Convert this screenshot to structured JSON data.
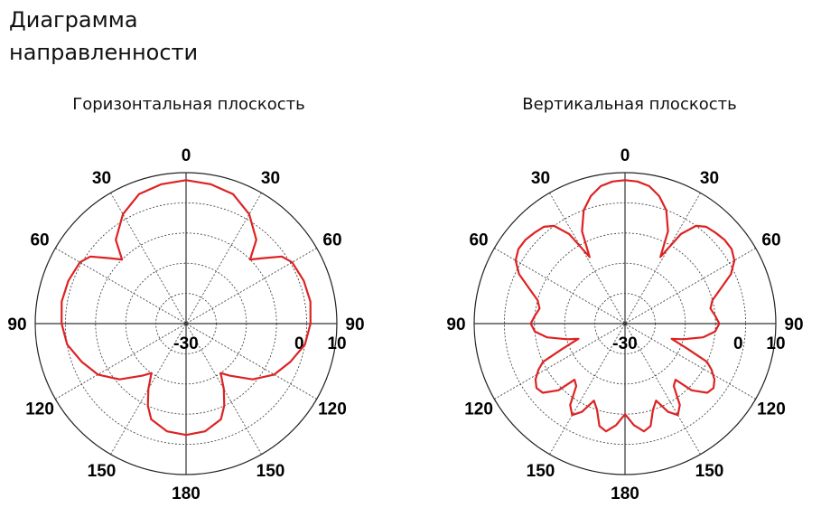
{
  "title": "Диаграмма направленности",
  "chart_data": [
    {
      "type": "polar",
      "title": "Горизонтальная плоскость",
      "angle_labels": [
        "0",
        "30",
        "60",
        "90",
        "120",
        "150",
        "180",
        "150",
        "120",
        "90",
        "60",
        "30"
      ],
      "radial_ticks": [
        "-30",
        "0",
        "10"
      ],
      "rlim": [
        -30,
        10
      ],
      "grid": true,
      "line_color": "#dd2222",
      "pattern": {
        "theta": [
          0,
          10,
          20,
          30,
          40,
          45,
          50,
          55,
          60,
          70,
          80,
          90,
          100,
          110,
          120,
          130,
          140,
          145,
          150,
          155,
          160,
          170,
          180
        ],
        "gain": [
          8,
          7.5,
          6.5,
          3.5,
          -1,
          -6,
          -3,
          1,
          2.5,
          3.2,
          3.5,
          3.0,
          2,
          -0.5,
          -3,
          -7,
          -12,
          -14,
          -10,
          -6,
          -3,
          -1,
          -0.5
        ]
      }
    },
    {
      "type": "polar",
      "title": "Вертикальная плоскость",
      "angle_labels": [
        "0",
        "30",
        "60",
        "90",
        "120",
        "150",
        "180",
        "150",
        "120",
        "90",
        "60",
        "30"
      ],
      "radial_ticks": [
        "-30",
        "0",
        "10"
      ],
      "rlim": [
        -30,
        10
      ],
      "grid": true,
      "line_color": "#dd2222",
      "pattern": {
        "theta": [
          0,
          5,
          10,
          15,
          20,
          25,
          28,
          32,
          36,
          40,
          45,
          50,
          55,
          60,
          65,
          70,
          75,
          80,
          85,
          90,
          95,
          100,
          105,
          108,
          112,
          115,
          118,
          122,
          126,
          130,
          135,
          138,
          142,
          146,
          150,
          154,
          158,
          162,
          166,
          170,
          175,
          180
        ],
        "gain": [
          8,
          7.8,
          7,
          5,
          2,
          -3,
          -10,
          -2,
          2,
          3.5,
          4,
          4.5,
          4.5,
          3.5,
          1,
          -3,
          -6,
          -7,
          -6,
          -5,
          -6,
          -9,
          -14,
          -17,
          -12,
          -6,
          -4,
          -2,
          -1,
          -1.5,
          -5,
          -10,
          -9,
          -4,
          -2,
          -4,
          -8,
          -6,
          -2,
          -1,
          -3,
          -6
        ]
      }
    }
  ]
}
